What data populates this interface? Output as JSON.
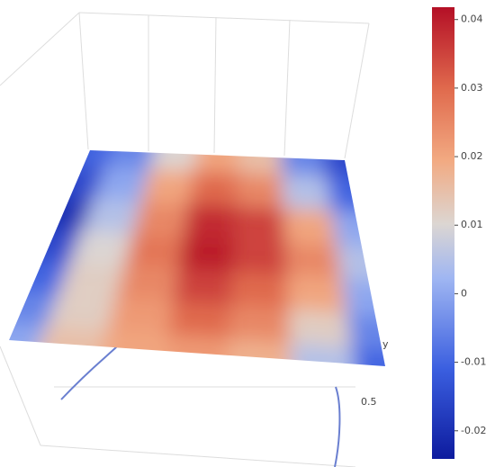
{
  "chart_data": {
    "type": "surface",
    "z": [
      [
        -0.01,
        -0.005,
        0.01,
        0.02,
        0.015,
        -0.005,
        -0.015
      ],
      [
        -0.015,
        0.0,
        0.02,
        0.03,
        0.025,
        0.005,
        -0.01
      ],
      [
        -0.02,
        0.005,
        0.025,
        0.038,
        0.035,
        0.02,
        0.0
      ],
      [
        -0.015,
        0.01,
        0.028,
        0.04,
        0.035,
        0.025,
        0.005
      ],
      [
        -0.01,
        0.012,
        0.025,
        0.035,
        0.03,
        0.02,
        0.0
      ],
      [
        -0.005,
        0.012,
        0.022,
        0.03,
        0.025,
        0.012,
        -0.005
      ],
      [
        0.0,
        0.015,
        0.02,
        0.022,
        0.018,
        0.005,
        -0.01
      ]
    ],
    "zlim": [
      -0.0241,
      0.0418
    ],
    "colorbar_ticks": [
      -0.02,
      -0.01,
      0,
      0.01,
      0.02,
      0.03,
      0.04
    ],
    "colorscale": [
      [
        0,
        "#0d1b9e"
      ],
      [
        0.2,
        "#3b5fe0"
      ],
      [
        0.4,
        "#9fb6f2"
      ],
      [
        0.52,
        "#dcd6d2"
      ],
      [
        0.66,
        "#f2aa82"
      ],
      [
        0.82,
        "#e06a4d"
      ],
      [
        1,
        "#b40f26"
      ]
    ],
    "y_axis": {
      "title": "y",
      "ticks": [
        0.5
      ]
    }
  }
}
